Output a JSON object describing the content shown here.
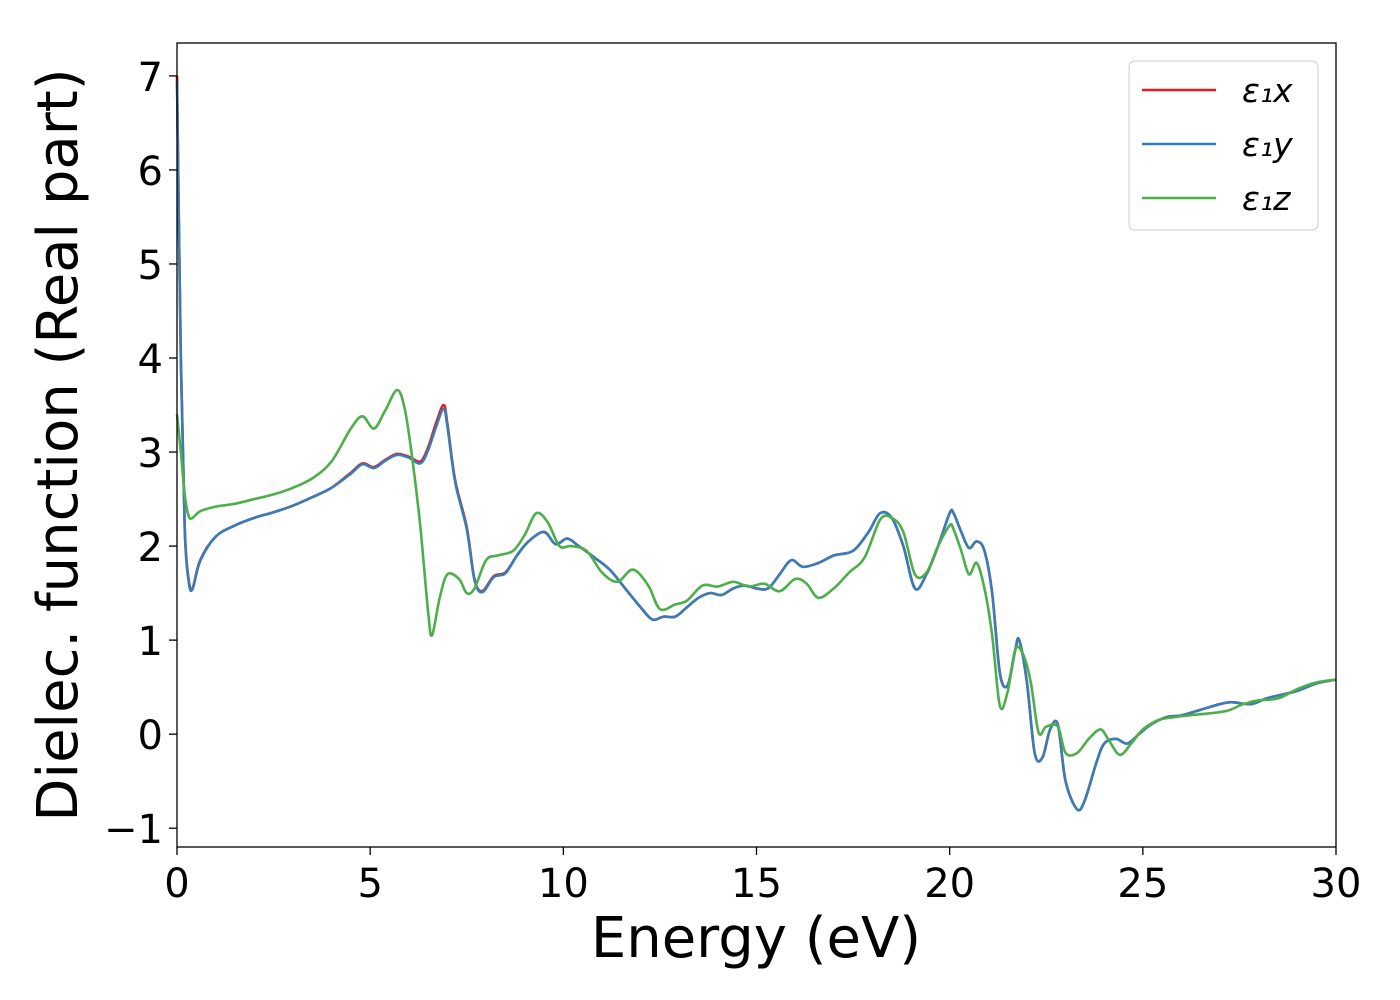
{
  "chart_data": {
    "type": "line",
    "title": "",
    "xlabel": "Energy (eV)",
    "ylabel": "Dielec. function (Real part)",
    "xlim": [
      0,
      30
    ],
    "ylim": [
      -1.2,
      7.35
    ],
    "xticks": [
      0,
      5,
      10,
      15,
      20,
      25,
      30
    ],
    "yticks": [
      -1,
      0,
      1,
      2,
      3,
      4,
      5,
      6,
      7
    ],
    "xtick_labels": [
      "0",
      "5",
      "10",
      "15",
      "20",
      "25",
      "30"
    ],
    "ytick_labels": [
      "−1",
      "0",
      "1",
      "2",
      "3",
      "4",
      "5",
      "6",
      "7"
    ],
    "grid": false,
    "legend_position": "top-right",
    "series": [
      {
        "name": "ε₁x",
        "color": "#e41a1c",
        "x": [
          0,
          0.1,
          0.2,
          0.3,
          0.4,
          0.6,
          1.0,
          1.5,
          2.0,
          2.5,
          3.0,
          3.5,
          4.0,
          4.5,
          4.8,
          5.1,
          5.4,
          5.7,
          6.0,
          6.3,
          6.5,
          6.7,
          6.9,
          7.0,
          7.2,
          7.5,
          7.7,
          7.9,
          8.2,
          8.5,
          8.8,
          9.1,
          9.5,
          9.8,
          10.1,
          10.4,
          10.8,
          11.2,
          11.6,
          12.0,
          12.3,
          12.6,
          12.9,
          13.2,
          13.5,
          13.8,
          14.1,
          14.4,
          14.7,
          15.0,
          15.3,
          15.6,
          15.9,
          16.2,
          16.6,
          17.0,
          17.5,
          17.9,
          18.2,
          18.5,
          18.8,
          19.1,
          19.4,
          19.7,
          20.0,
          20.1,
          20.3,
          20.5,
          20.7,
          20.9,
          21.1,
          21.3,
          21.5,
          21.7,
          21.8,
          22.0,
          22.2,
          22.4,
          22.6,
          22.8,
          23.0,
          23.3,
          23.5,
          23.8,
          24.0,
          24.3,
          24.6,
          24.9,
          25.2,
          25.6,
          26.0,
          26.5,
          27.0,
          27.3,
          27.8,
          28.2,
          28.6,
          29.0,
          29.5,
          30.0
        ],
        "y": [
          7.0,
          4.0,
          2.2,
          1.65,
          1.55,
          1.85,
          2.1,
          2.22,
          2.3,
          2.36,
          2.43,
          2.52,
          2.62,
          2.78,
          2.88,
          2.84,
          2.92,
          2.98,
          2.95,
          2.9,
          3.05,
          3.3,
          3.5,
          3.3,
          2.7,
          2.2,
          1.65,
          1.52,
          1.68,
          1.72,
          1.9,
          2.05,
          2.15,
          2.02,
          2.08,
          2.0,
          1.88,
          1.75,
          1.55,
          1.35,
          1.22,
          1.25,
          1.25,
          1.35,
          1.45,
          1.5,
          1.48,
          1.55,
          1.58,
          1.55,
          1.55,
          1.7,
          1.85,
          1.78,
          1.82,
          1.9,
          1.95,
          2.15,
          2.35,
          2.3,
          2.0,
          1.55,
          1.7,
          2.0,
          2.35,
          2.35,
          2.15,
          1.98,
          2.05,
          1.95,
          1.5,
          0.65,
          0.52,
          0.9,
          1.0,
          0.55,
          -0.2,
          -0.25,
          0.05,
          0.1,
          -0.5,
          -0.8,
          -0.7,
          -0.3,
          -0.1,
          -0.05,
          -0.1,
          0.0,
          0.1,
          0.18,
          0.2,
          0.26,
          0.32,
          0.34,
          0.32,
          0.38,
          0.42,
          0.46,
          0.54,
          0.58
        ]
      },
      {
        "name": "ε₁y",
        "color": "#377eb8",
        "x": [
          0,
          0.1,
          0.2,
          0.3,
          0.4,
          0.6,
          1.0,
          1.5,
          2.0,
          2.5,
          3.0,
          3.5,
          4.0,
          4.5,
          4.8,
          5.1,
          5.4,
          5.7,
          6.0,
          6.3,
          6.5,
          6.7,
          6.9,
          7.0,
          7.2,
          7.5,
          7.7,
          7.9,
          8.2,
          8.5,
          8.8,
          9.1,
          9.5,
          9.8,
          10.1,
          10.4,
          10.8,
          11.2,
          11.6,
          12.0,
          12.3,
          12.6,
          12.9,
          13.2,
          13.5,
          13.8,
          14.1,
          14.4,
          14.7,
          15.0,
          15.3,
          15.6,
          15.9,
          16.2,
          16.6,
          17.0,
          17.5,
          17.9,
          18.2,
          18.5,
          18.8,
          19.1,
          19.4,
          19.7,
          20.0,
          20.1,
          20.3,
          20.5,
          20.7,
          20.9,
          21.1,
          21.3,
          21.5,
          21.7,
          21.8,
          22.0,
          22.2,
          22.4,
          22.6,
          22.8,
          23.0,
          23.3,
          23.5,
          23.8,
          24.0,
          24.3,
          24.6,
          24.9,
          25.2,
          25.6,
          26.0,
          26.5,
          27.0,
          27.3,
          27.8,
          28.2,
          28.6,
          29.0,
          29.5,
          30.0
        ],
        "y": [
          6.95,
          3.95,
          2.18,
          1.63,
          1.54,
          1.84,
          2.1,
          2.22,
          2.3,
          2.36,
          2.43,
          2.52,
          2.62,
          2.77,
          2.87,
          2.83,
          2.91,
          2.97,
          2.94,
          2.88,
          3.02,
          3.26,
          3.46,
          3.27,
          2.68,
          2.18,
          1.64,
          1.51,
          1.67,
          1.71,
          1.9,
          2.05,
          2.15,
          2.02,
          2.08,
          2.0,
          1.88,
          1.75,
          1.55,
          1.35,
          1.22,
          1.25,
          1.25,
          1.35,
          1.45,
          1.5,
          1.48,
          1.55,
          1.58,
          1.55,
          1.55,
          1.7,
          1.85,
          1.78,
          1.82,
          1.9,
          1.95,
          2.15,
          2.35,
          2.3,
          2.0,
          1.55,
          1.7,
          2.0,
          2.35,
          2.35,
          2.15,
          1.98,
          2.05,
          1.95,
          1.5,
          0.65,
          0.52,
          0.9,
          1.0,
          0.55,
          -0.2,
          -0.25,
          0.05,
          0.1,
          -0.5,
          -0.8,
          -0.7,
          -0.3,
          -0.1,
          -0.05,
          -0.1,
          0.0,
          0.1,
          0.18,
          0.2,
          0.26,
          0.32,
          0.34,
          0.32,
          0.38,
          0.42,
          0.46,
          0.54,
          0.58
        ]
      },
      {
        "name": "ε₁z",
        "color": "#4daf4a",
        "x": [
          0,
          0.1,
          0.2,
          0.3,
          0.4,
          0.6,
          1.0,
          1.5,
          2.0,
          2.5,
          3.0,
          3.5,
          4.0,
          4.5,
          4.8,
          5.1,
          5.4,
          5.7,
          5.9,
          6.1,
          6.3,
          6.5,
          6.6,
          6.8,
          7.0,
          7.3,
          7.5,
          7.7,
          8.0,
          8.3,
          8.7,
          9.0,
          9.3,
          9.6,
          9.9,
          10.2,
          10.6,
          11.0,
          11.4,
          11.8,
          12.2,
          12.5,
          12.9,
          13.2,
          13.6,
          14.0,
          14.4,
          14.8,
          15.2,
          15.6,
          16.0,
          16.3,
          16.6,
          17.0,
          17.4,
          17.8,
          18.2,
          18.5,
          18.8,
          19.1,
          19.4,
          19.7,
          20.0,
          20.1,
          20.3,
          20.5,
          20.7,
          20.9,
          21.1,
          21.3,
          21.5,
          21.7,
          21.9,
          22.1,
          22.3,
          22.5,
          22.8,
          23.0,
          23.3,
          23.6,
          23.9,
          24.1,
          24.4,
          24.7,
          25.0,
          25.4,
          25.8,
          26.2,
          26.7,
          27.2,
          27.6,
          28.0,
          28.5,
          29.0,
          29.5,
          30.0
        ],
        "y": [
          3.4,
          3.0,
          2.55,
          2.32,
          2.3,
          2.37,
          2.42,
          2.45,
          2.5,
          2.55,
          2.62,
          2.72,
          2.9,
          3.25,
          3.38,
          3.25,
          3.45,
          3.66,
          3.45,
          2.9,
          2.2,
          1.3,
          1.05,
          1.45,
          1.7,
          1.65,
          1.5,
          1.55,
          1.85,
          1.9,
          1.95,
          2.12,
          2.35,
          2.25,
          2.0,
          2.0,
          1.95,
          1.72,
          1.62,
          1.75,
          1.58,
          1.33,
          1.38,
          1.42,
          1.58,
          1.57,
          1.62,
          1.57,
          1.6,
          1.52,
          1.65,
          1.6,
          1.45,
          1.55,
          1.72,
          1.88,
          2.28,
          2.3,
          2.15,
          1.7,
          1.72,
          2.0,
          2.22,
          2.18,
          1.95,
          1.7,
          1.82,
          1.55,
          1.05,
          0.3,
          0.45,
          0.9,
          0.85,
          0.55,
          0.02,
          0.08,
          0.08,
          -0.2,
          -0.2,
          -0.05,
          0.05,
          -0.05,
          -0.22,
          -0.1,
          0.05,
          0.15,
          0.18,
          0.2,
          0.22,
          0.25,
          0.32,
          0.36,
          0.38,
          0.48,
          0.55,
          0.58
        ]
      }
    ]
  }
}
